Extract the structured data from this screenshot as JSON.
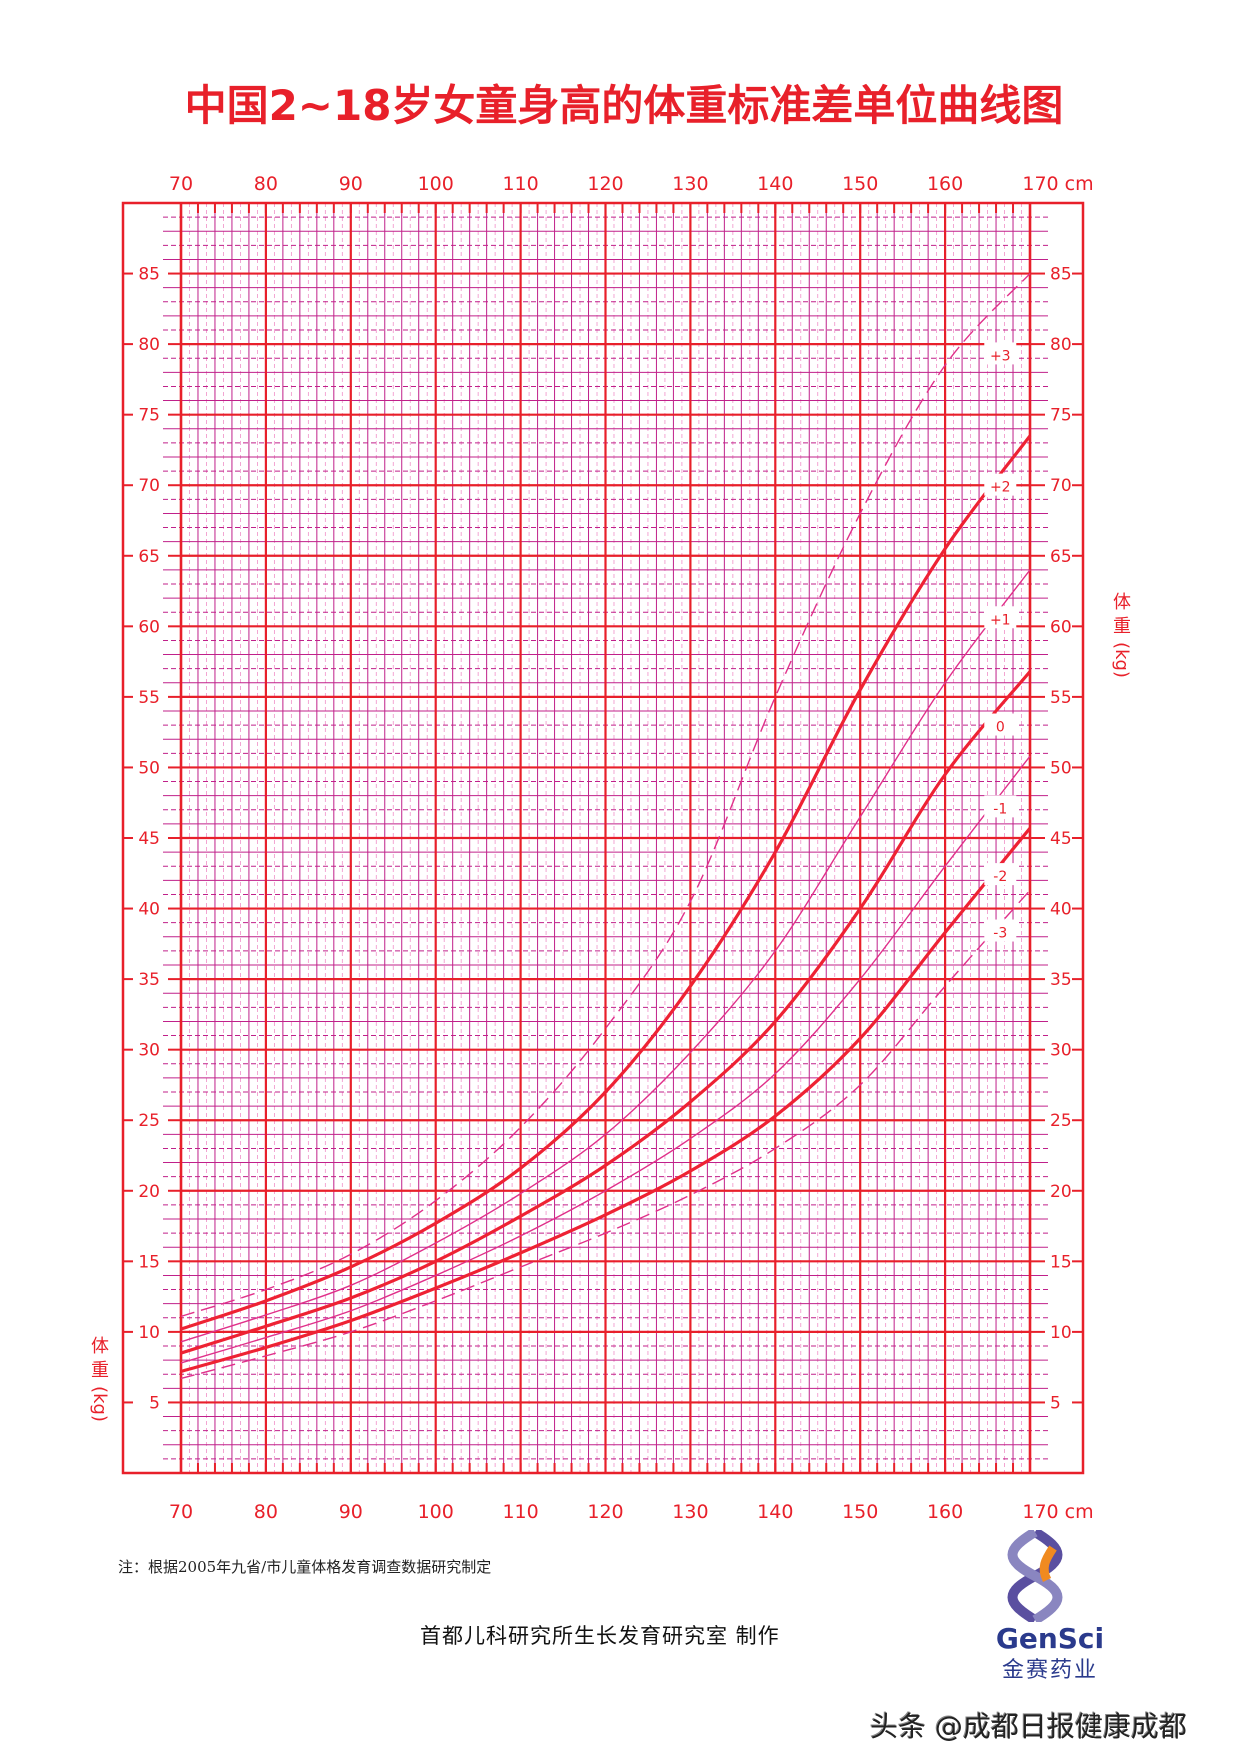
{
  "title": "中国2~18岁女童身高的体重标准差单位曲线图",
  "note": "注：根据2005年九省/市儿童体格发育调查数据研究制定",
  "maker": "首都儿科研究所生长发育研究室  制作",
  "logo": {
    "en": "GenSci",
    "cn": "金赛药业",
    "icon": "dna-helix-icon"
  },
  "watermark": "头条 @成都日报健康成都",
  "colors": {
    "axis": "#e8202a",
    "major_grid": "#e8202a",
    "minor_grid": "#c0208a",
    "curve": "#ee2233",
    "sd_thin": "#e0308a",
    "text": "#e8202a"
  },
  "chart_data": {
    "type": "line",
    "title": "中国2~18岁女童身高的体重标准差单位曲线图",
    "xlabel": "cm",
    "ylabel": "体重(kg)",
    "x_ticks": [
      70,
      80,
      90,
      100,
      110,
      120,
      130,
      140,
      150,
      160,
      170
    ],
    "x_tick_labels": [
      "70",
      "80",
      "90",
      "100",
      "110",
      "120",
      "130",
      "140",
      "150",
      "160",
      "170 cm"
    ],
    "y_ticks": [
      5,
      10,
      15,
      20,
      25,
      30,
      35,
      40,
      45,
      50,
      55,
      60,
      65,
      70,
      75,
      80,
      85
    ],
    "xlim": [
      70,
      170
    ],
    "ylim": [
      0,
      90
    ],
    "grid": true,
    "x": [
      70,
      80,
      90,
      100,
      110,
      120,
      130,
      140,
      150,
      160,
      170
    ],
    "series": [
      {
        "name": "+3",
        "style": "dashed",
        "values": [
          11.1,
          13.0,
          15.5,
          19.3,
          24.5,
          31.5,
          40.5,
          55.0,
          68.0,
          78.5,
          85.0
        ]
      },
      {
        "name": "+2",
        "style": "bold",
        "values": [
          10.2,
          12.2,
          14.6,
          17.7,
          21.6,
          27.0,
          34.5,
          44.0,
          55.5,
          65.5,
          73.5
        ]
      },
      {
        "name": "+1",
        "style": "thin",
        "values": [
          9.3,
          11.2,
          13.3,
          16.3,
          19.8,
          24.0,
          29.8,
          37.0,
          46.5,
          56.0,
          64.0
        ]
      },
      {
        "name": "0",
        "style": "bold",
        "values": [
          8.5,
          10.4,
          12.4,
          15.0,
          18.2,
          21.8,
          26.3,
          32.0,
          40.0,
          49.5,
          56.8
        ]
      },
      {
        "name": "-1",
        "style": "thin",
        "values": [
          7.8,
          9.6,
          11.5,
          14.0,
          16.8,
          20.0,
          23.7,
          28.3,
          35.0,
          43.0,
          50.8
        ]
      },
      {
        "name": "-2",
        "style": "bold",
        "values": [
          7.2,
          8.9,
          10.8,
          13.1,
          15.6,
          18.3,
          21.4,
          25.3,
          30.8,
          38.3,
          45.7
        ]
      },
      {
        "name": "-3",
        "style": "dashed",
        "values": [
          6.7,
          8.3,
          10.0,
          12.2,
          14.6,
          17.0,
          19.7,
          23.0,
          27.5,
          34.5,
          41.3
        ]
      }
    ],
    "series_label_positions": [
      {
        "name": "+3",
        "x": 166.5,
        "y": 79.2
      },
      {
        "name": "+2",
        "x": 166.5,
        "y": 69.9
      },
      {
        "name": "+1",
        "x": 166.5,
        "y": 60.5
      },
      {
        "name": "0",
        "x": 166.5,
        "y": 52.9
      },
      {
        "name": "-1",
        "x": 166.5,
        "y": 47.1
      },
      {
        "name": "-2",
        "x": 166.5,
        "y": 42.3
      },
      {
        "name": "-3",
        "x": 166.5,
        "y": 38.3
      }
    ]
  }
}
